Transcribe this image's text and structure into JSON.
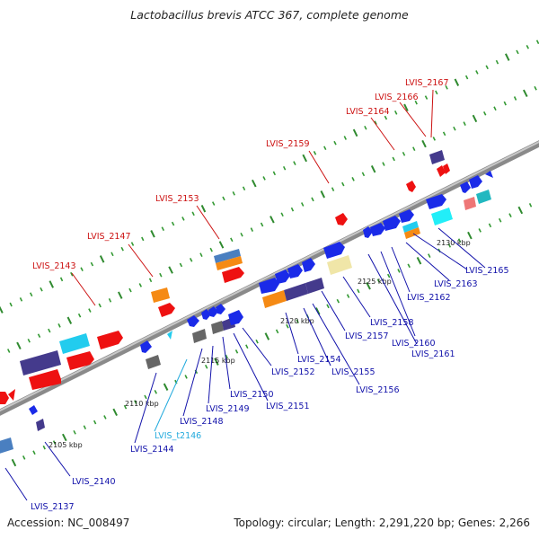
{
  "title": "Lactobacillus brevis ATCC 367, complete genome",
  "footer": {
    "accession": "Accession: NC_008497",
    "topology": "Topology: circular; Length: 2,291,220 bp; Genes: 2,266"
  },
  "colors": {
    "red_label": "#cc1111",
    "blue_label": "#1111aa",
    "cyan_label": "#22aadd",
    "backbone": "#888888",
    "tick": "#339933"
  },
  "kbp_marks": [
    "2105 kbp",
    "2110 kbp",
    "2115 kbp",
    "2120 kbp",
    "2125 kbp",
    "2130 kbp"
  ],
  "labels_top": [
    "LVIS_2143",
    "LVIS_2147",
    "LVIS_2153",
    "LVIS_2159",
    "LVIS_2164",
    "LVIS_2166",
    "LVIS_2167"
  ],
  "labels_bottom": [
    "LVIS_2137",
    "LVIS_2140",
    "LVIS_2144",
    "LVIS_t2146",
    "LVIS_2148",
    "LVIS_2149",
    "LVIS_2150",
    "LVIS_2151",
    "LVIS_2152",
    "LVIS_2154",
    "LVIS_2155",
    "LVIS_2156",
    "LVIS_2157",
    "LVIS_2158",
    "LVIS_2160",
    "LVIS_2161",
    "LVIS_2162",
    "LVIS_2163",
    "LVIS_2165"
  ]
}
